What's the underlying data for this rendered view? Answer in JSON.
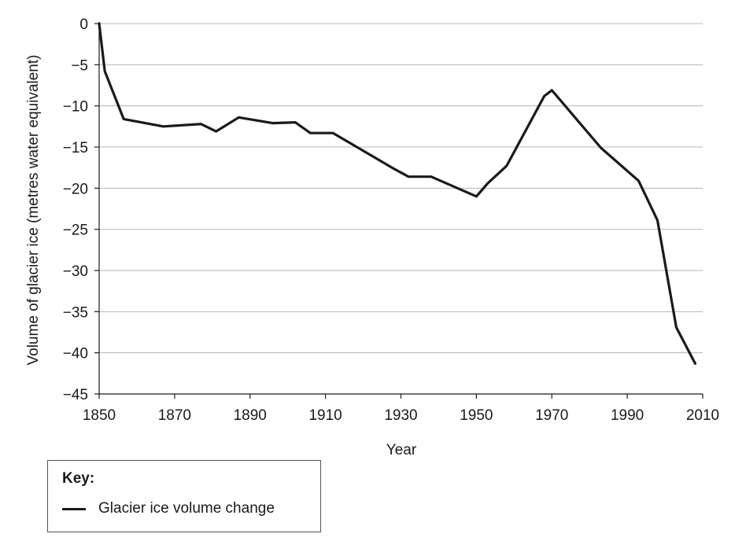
{
  "chart_data": {
    "type": "line",
    "title": "",
    "xlabel": "Year",
    "ylabel": "Volume of glacier ice (metres water equivalent)",
    "xlim": [
      1850,
      2010
    ],
    "ylim": [
      -45,
      0
    ],
    "xticks": [
      1850,
      1870,
      1890,
      1910,
      1930,
      1950,
      1970,
      1990,
      2010
    ],
    "yticks": [
      0,
      -5,
      -10,
      -15,
      -20,
      -25,
      -30,
      -35,
      -40,
      -45
    ],
    "ytick_labels": [
      "0",
      "−5",
      "−10",
      "−15",
      "−20",
      "−25",
      "−30",
      "−35",
      "−40",
      "−45"
    ],
    "grid": "horizontal",
    "series": [
      {
        "name": "Glacier ice volume change",
        "color": "#1a1a1a",
        "x": [
          1850,
          1851.5,
          1856.5,
          1867,
          1877,
          1881,
          1887,
          1896,
          1902,
          1906,
          1912,
          1925,
          1928,
          1932,
          1938,
          1950,
          1953,
          1958,
          1968,
          1970,
          1983,
          1993,
          1998,
          2003,
          2008
        ],
        "y": [
          0,
          -5.8,
          -11.6,
          -12.5,
          -12.2,
          -13.1,
          -11.4,
          -12.1,
          -12.0,
          -13.3,
          -13.3,
          -16.8,
          -17.6,
          -18.6,
          -18.6,
          -21.0,
          -19.4,
          -17.3,
          -8.8,
          -8.1,
          -15.1,
          -19.1,
          -23.9,
          -36.9,
          -41.3
        ]
      }
    ]
  },
  "legend": {
    "title": "Key:",
    "items": [
      {
        "label": "Glacier ice volume change",
        "color": "#1a1a1a"
      }
    ]
  }
}
